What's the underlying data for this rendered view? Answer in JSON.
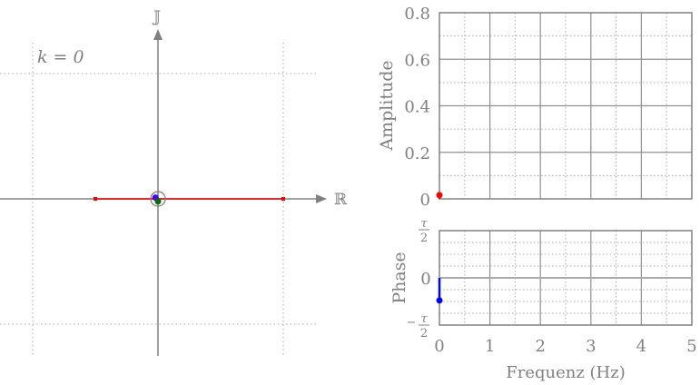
{
  "chart_data": [
    {
      "type": "scatter",
      "title": "k = 0",
      "xlabel": "ℝ",
      "ylabel": "𝕁",
      "grid": true,
      "grid_lines": [
        -1,
        1
      ],
      "xlim": [
        -1.25,
        1.35
      ],
      "ylim": [
        -1.25,
        1.35
      ],
      "segment": {
        "from": [
          -0.5,
          0
        ],
        "to": [
          1,
          0
        ],
        "color": "#ff0000"
      },
      "circle_center": [
        0,
        0
      ],
      "points": [
        {
          "name": "blue",
          "x": -0.02,
          "y": 0.01,
          "color": "#4b00ff"
        },
        {
          "name": "green",
          "x": 0.0,
          "y": -0.02,
          "color": "#007000"
        }
      ]
    },
    {
      "type": "bar",
      "ylabel": "Amplitude",
      "xlim": [
        0,
        5
      ],
      "ylim": [
        0,
        0.8
      ],
      "yticks": [
        "0",
        "0.2",
        "0.4",
        "0.6",
        "0.8"
      ],
      "ytick_values": [
        0,
        0.2,
        0.4,
        0.6,
        0.8
      ],
      "grid": true,
      "stems": [
        {
          "x": 0,
          "y": 0.016,
          "color": "#ff0000"
        }
      ]
    },
    {
      "type": "bar",
      "ylabel": "Phase",
      "xlabel": "Frequenz (Hz)",
      "xlim": [
        0,
        5
      ],
      "ylim": [
        -3.14159,
        3.14159
      ],
      "xticks": [
        "0",
        "1",
        "2",
        "3",
        "4",
        "5"
      ],
      "ytick_labels": {
        "top_num": "τ",
        "top_den": "2",
        "zero": "0",
        "bottom_sign": "−",
        "bottom_num": "τ",
        "bottom_den": "2"
      },
      "grid": true,
      "stems": [
        {
          "x": 0,
          "y": -1.5,
          "color": "#0000ff"
        }
      ]
    }
  ]
}
